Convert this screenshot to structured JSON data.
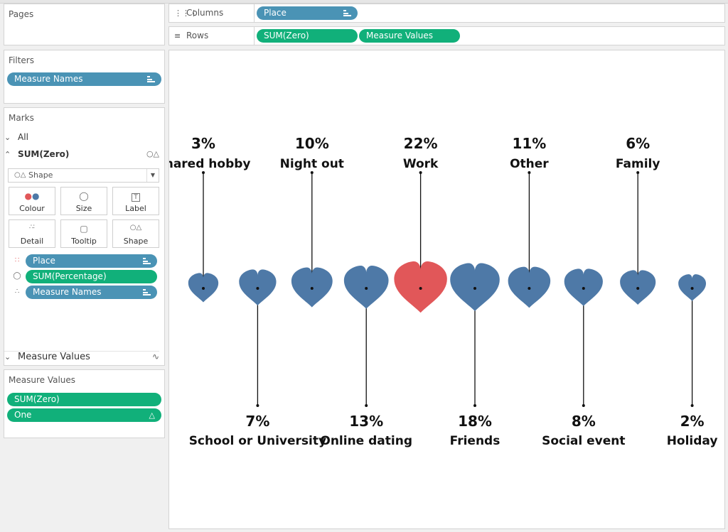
{
  "pages": {
    "title": "Pages"
  },
  "filters": {
    "title": "Filters",
    "pills": [
      {
        "label": "Measure Names"
      }
    ]
  },
  "columns": {
    "title": "Columns",
    "pill": "Place"
  },
  "rows": {
    "title": "Rows",
    "pills": [
      "SUM(Zero)",
      "Measure Values"
    ]
  },
  "marks": {
    "title": "Marks",
    "all_label": "All",
    "sum_zero_label": "SUM(Zero)",
    "mark_type": "Shape",
    "buttons": {
      "colour": "Colour",
      "size": "Size",
      "label": "Label",
      "detail": "Detail",
      "tooltip": "Tooltip",
      "shape": "Shape"
    },
    "fields": [
      "Place",
      "SUM(Percentage)",
      "Measure Names"
    ],
    "measure_values_label": "Measure Values"
  },
  "measure_values": {
    "title": "Measure Values",
    "pills": [
      "SUM(Zero)",
      "One"
    ]
  },
  "colors": {
    "default_heart": "#4e79a7",
    "highlight_heart": "#e15759",
    "blue_pill": "#4a93b5",
    "green_pill": "#11b07a"
  },
  "chart_data": {
    "type": "scatter",
    "mark": "heart-icon",
    "categories": [
      "Shared hobby",
      "School or University",
      "Night out",
      "Online dating",
      "Work",
      "Friends",
      "Other",
      "Social event",
      "Family",
      "Holiday"
    ],
    "values": [
      3,
      7,
      10,
      13,
      22,
      18,
      11,
      8,
      6,
      2
    ],
    "value_labels": [
      "3%",
      "7%",
      "10%",
      "13%",
      "22%",
      "18%",
      "11%",
      "8%",
      "6%",
      "2%"
    ],
    "label_position": [
      "top",
      "bottom",
      "top",
      "bottom",
      "top",
      "bottom",
      "top",
      "bottom",
      "top",
      "bottom"
    ],
    "highlight": "Work"
  }
}
